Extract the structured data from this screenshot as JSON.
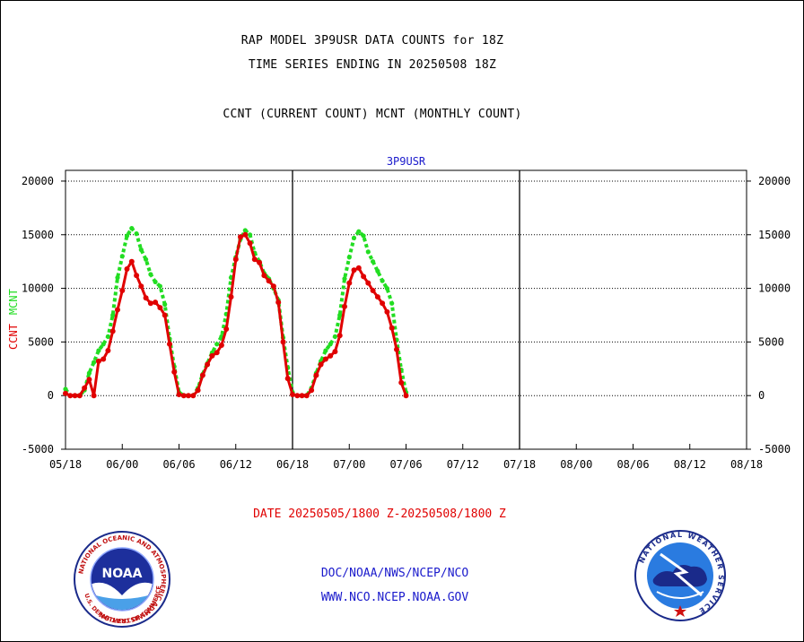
{
  "header": {
    "title_line1": "RAP MODEL 3P9USR DATA COUNTS for 18Z",
    "title_line2": "TIME SERIES ENDING IN 20250508 18Z",
    "legend_text": "CCNT (CURRENT COUNT) MCNT (MONTHLY COUNT)"
  },
  "footer": {
    "date_range": "DATE 20250505/1800 Z-20250508/1800 Z",
    "link1": "DOC/NOAA/NWS/NCEP/NCO",
    "link2": "WWW.NCO.NCEP.NOAA.GOV"
  },
  "logos": {
    "noaa_label": "NOAA",
    "noaa_ring_text": "NATIONAL OCEANIC AND ATMOSPHERIC ADMINISTRATION",
    "noaa_bottom_text": "U.S. DEPARTMENT OF COMMERCE",
    "nws_ring_text": "NATIONAL WEATHER SERVICE"
  },
  "colors": {
    "ccnt": "#e00000",
    "mcnt": "#22dd22",
    "axis": "#000000",
    "panel_title": "#1a1acc"
  },
  "chart_data": {
    "type": "line",
    "title": "3P9USR",
    "ylabel_series": [
      "CCNT",
      "MCNT"
    ],
    "ylim": [
      -5000,
      21000
    ],
    "yticks": [
      -5000,
      0,
      5000,
      10000,
      15000,
      20000
    ],
    "ytick_labels": [
      "-5000",
      "0",
      "5000",
      "10000",
      "15000",
      "20000"
    ],
    "xtick_labels": [
      "05/18",
      "06/00",
      "06/06",
      "06/12",
      "06/18",
      "07/00",
      "07/06",
      "07/12",
      "07/18",
      "08/00",
      "08/06",
      "08/12",
      "08/18"
    ],
    "x_range_hours": [
      0,
      72
    ],
    "gridlines": "y dotted",
    "panel_separators_hours": [
      24,
      48
    ],
    "series": [
      {
        "name": "CCNT",
        "points_per_hour": 2,
        "values": [
          200,
          0,
          0,
          0,
          700,
          1500,
          0,
          3200,
          3400,
          4200,
          6000,
          8000,
          9800,
          11800,
          12500,
          11200,
          10200,
          9100,
          8600,
          8700,
          8200,
          7500,
          4800,
          2200,
          100,
          0,
          0,
          0,
          500,
          1900,
          2900,
          3700,
          4000,
          4700,
          6200,
          9200,
          12700,
          14800,
          15000,
          14200,
          12700,
          12400,
          11200,
          10700,
          10200,
          8700,
          5000,
          1600,
          100,
          0,
          0,
          0,
          500,
          1900,
          2900,
          3400,
          3700,
          4100,
          5600,
          8300,
          10500,
          11700,
          11900,
          11100,
          10500,
          9800,
          9200,
          8600,
          7800,
          6300,
          4300,
          1200,
          0
        ]
      },
      {
        "name": "MCNT",
        "points_per_hour": 2,
        "values": [
          600,
          0,
          0,
          0,
          500,
          2100,
          3100,
          4200,
          4800,
          5500,
          7500,
          11000,
          13000,
          14900,
          15600,
          15100,
          13600,
          12700,
          11300,
          10600,
          10200,
          8500,
          5300,
          2700,
          300,
          0,
          0,
          0,
          700,
          2000,
          3000,
          4000,
          4800,
          5500,
          7600,
          11000,
          12900,
          14600,
          15400,
          15000,
          13300,
          12500,
          11400,
          10900,
          10000,
          8900,
          5400,
          2600,
          300,
          0,
          0,
          0,
          700,
          2100,
          3200,
          4200,
          4800,
          5500,
          7500,
          10900,
          12900,
          14700,
          15300,
          14900,
          13400,
          12500,
          11600,
          10700,
          10000,
          8600,
          5200,
          2400,
          300
        ]
      }
    ]
  }
}
